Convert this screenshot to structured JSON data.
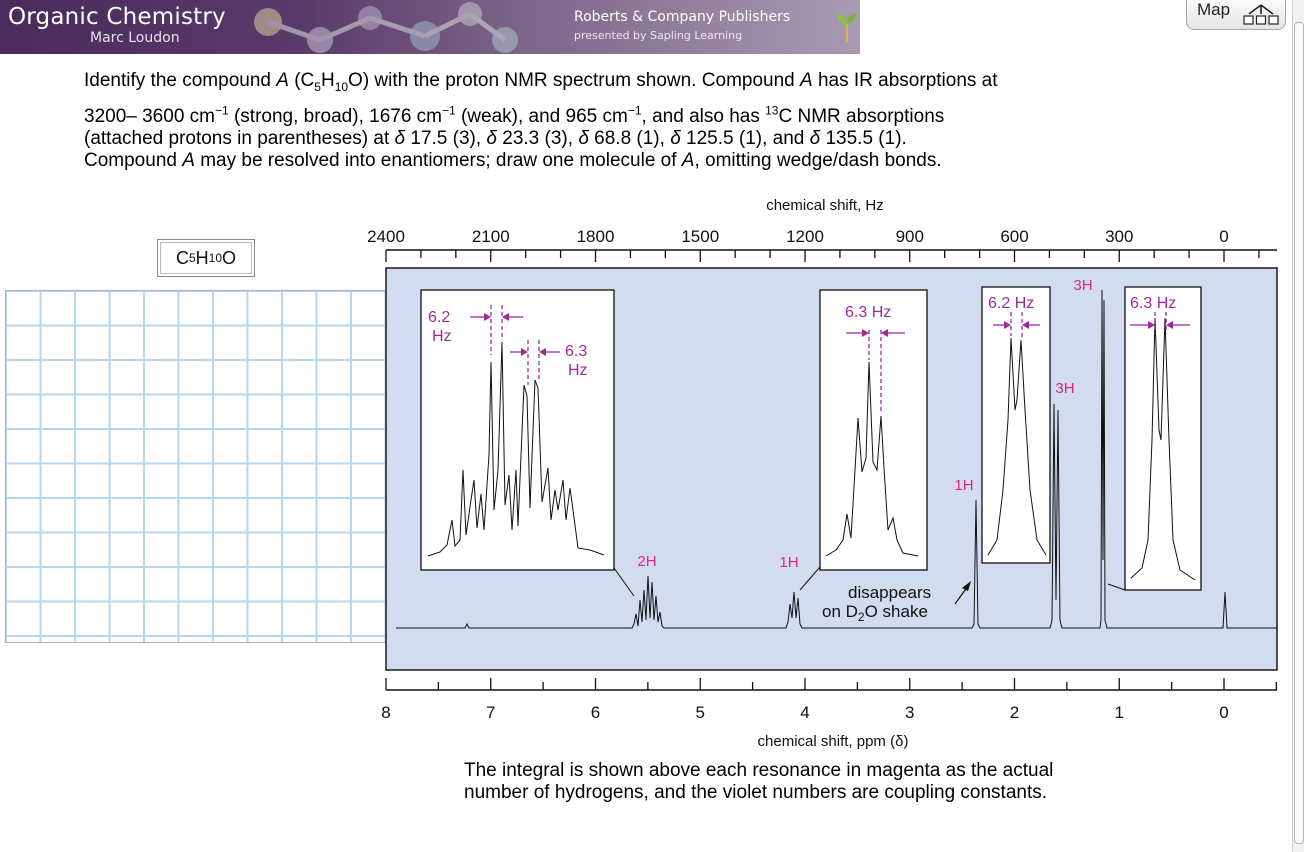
{
  "banner": {
    "title": "Organic Chemistry",
    "author": "Marc Loudon",
    "publisher": "Roberts & Company Publishers",
    "presented_by": "presented by Sapling Learning"
  },
  "map_button": {
    "label": "Map"
  },
  "question": {
    "l1_a": "Identify the compound ",
    "l1_A": "A",
    "l1_b": " (C",
    "l1_sub5": "5",
    "l1_c": "H",
    "l1_sub10": "10",
    "l1_d": "O) with the proton NMR spectrum shown. Compound ",
    "l1_A2": "A",
    "l1_e": " has IR absorptions at",
    "l2_a": "3200– 3600 cm",
    "l2_sup1": "−1",
    "l2_b": " (strong, broad), 1676 cm",
    "l2_sup2": "−1",
    "l2_c": " (weak), and 965 cm",
    "l2_sup3": "−1",
    "l2_d": ", and also has ",
    "l2_sup13": "13",
    "l2_e": "C NMR absorptions",
    "l3_a": "(attached protons in parentheses) at ",
    "delta": "δ",
    "l3_v1": " 17.5 (3), ",
    "l3_v2": " 23.3 (3), ",
    "l3_v3": " 68.8 (1), ",
    "l3_v4": " 125.5 (1), and ",
    "l3_v5": " 135.5 (1).",
    "l4_a": "Compound ",
    "l4_A": "A",
    "l4_b": " may be resolved into enantiomers; draw one molecule of ",
    "l4_A2": "A",
    "l4_c": ", omitting wedge/dash bonds."
  },
  "formula": {
    "c": "C",
    "c_sub": "5",
    "h": "H",
    "h_sub": "10",
    "o": "O"
  },
  "spectrum": {
    "hz_axis_title": "chemical shift, Hz",
    "hz_ticks": [
      "2400",
      "2100",
      "1800",
      "1500",
      "1200",
      "900",
      "600",
      "300",
      "0"
    ],
    "ppm_axis_title": "chemical shift, ppm (δ)",
    "ppm_ticks": [
      "8",
      "7",
      "6",
      "5",
      "4",
      "3",
      "2",
      "1",
      "0"
    ],
    "integrals": [
      "2H",
      "1H",
      "1H",
      "3H",
      "3H"
    ],
    "inset1": {
      "c1a": "6.2",
      "c1b": "Hz",
      "c2a": "6.3",
      "c2b": "Hz"
    },
    "inset2": {
      "c": "6.3 Hz"
    },
    "inset3": {
      "c": "6.2 Hz"
    },
    "inset4": {
      "c": "6.3 Hz"
    },
    "oh_note": {
      "line1": "disappears",
      "line2a": "on D",
      "line2_sub": "2",
      "line2b": "O shake"
    }
  },
  "footer": {
    "line1": "The integral is shown above each resonance in magenta as the actual",
    "line2": "number of hydrogens, and the violet numbers are coupling constants."
  },
  "colors": {
    "panel": "#d2dcef",
    "integral": "#e8208e",
    "coupling": "#a0289a"
  }
}
